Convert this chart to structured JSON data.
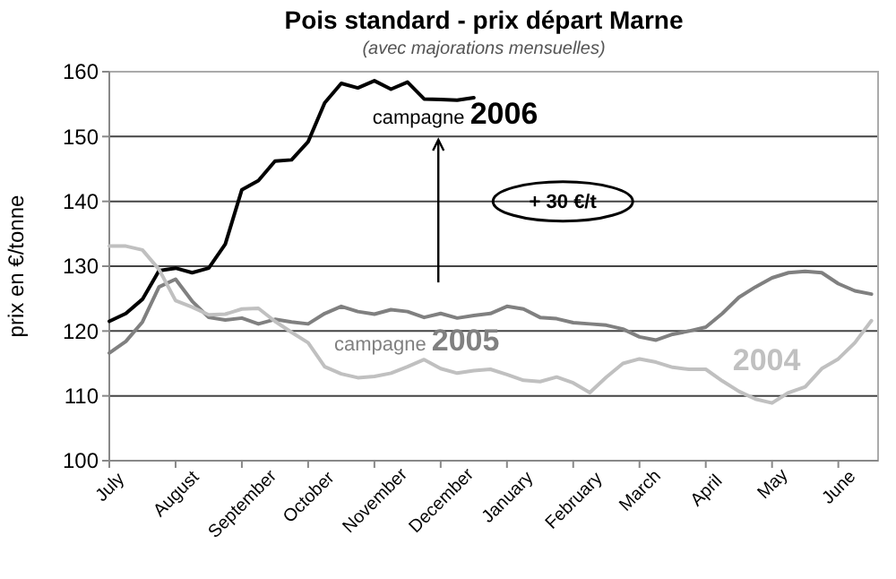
{
  "chart_data": {
    "type": "line",
    "title": "Pois standard - prix départ Marne",
    "subtitle": "(avec majorations mensuelles)",
    "ylabel": "prix en €/tonne",
    "annotations": [
      "+ 30 €/t"
    ],
    "categories": [
      "July",
      null,
      null,
      null,
      "August",
      null,
      null,
      null,
      "September",
      null,
      null,
      null,
      "October",
      null,
      null,
      null,
      "November",
      null,
      null,
      null,
      "December",
      null,
      null,
      null,
      "January",
      null,
      null,
      null,
      "February",
      null,
      null,
      null,
      "March",
      null,
      null,
      null,
      "April",
      null,
      null,
      null,
      "May",
      null,
      null,
      null,
      "June",
      null,
      null
    ],
    "ylim": [
      100,
      160
    ],
    "yticks": [
      100,
      110,
      120,
      130,
      140,
      150,
      160
    ],
    "grid": "y",
    "marker": "none",
    "line_style": "solid",
    "series": [
      {
        "name": "campagne 2006",
        "color": "#000000",
        "values": [
          121.5,
          122.7,
          124.9,
          129.3,
          129.7,
          129,
          129.7,
          133.4,
          141.8,
          143.2,
          146.2,
          146.4,
          149.2,
          155.2,
          158.2,
          157.5,
          158.6,
          157.3,
          158.4,
          155.8,
          155.7,
          155.6,
          156,
          null,
          null,
          null,
          null,
          null,
          null,
          null,
          null,
          null,
          null,
          null,
          null,
          null,
          null,
          null,
          null,
          null,
          null,
          null,
          null,
          null,
          null,
          null,
          null
        ]
      },
      {
        "name": "campagne 2005",
        "color": "#808080",
        "values": [
          116.6,
          118.4,
          121.4,
          126.8,
          128,
          124.6,
          122.1,
          121.7,
          122,
          121.1,
          121.8,
          121.4,
          121.1,
          122.7,
          123.8,
          123,
          122.6,
          123.3,
          123,
          122.1,
          122.7,
          122,
          122.4,
          122.7,
          123.8,
          123.4,
          122.1,
          121.9,
          121.3,
          121.1,
          120.9,
          120.3,
          119.1,
          118.6,
          119.5,
          120,
          120.6,
          122.7,
          125.2,
          126.8,
          128.2,
          129,
          129.2,
          129,
          127.3,
          126.2,
          125.7
        ]
      },
      {
        "name": "2004",
        "color": "#c0c0c0",
        "values": [
          133.1,
          133.1,
          132.5,
          129.5,
          124.7,
          123.7,
          122.5,
          122.6,
          123.4,
          123.5,
          121.5,
          119.8,
          118.2,
          114.5,
          113.4,
          112.8,
          113,
          113.5,
          114.5,
          115.6,
          114.2,
          113.5,
          113.9,
          114.1,
          113.3,
          112.4,
          112.2,
          112.9,
          112,
          110.5,
          112.9,
          115,
          115.7,
          115.2,
          114.4,
          114.1,
          114.1,
          112.3,
          110.7,
          109.5,
          108.9,
          110.5,
          111.4,
          114.2,
          115.7,
          118.2,
          121.6
        ]
      }
    ]
  }
}
